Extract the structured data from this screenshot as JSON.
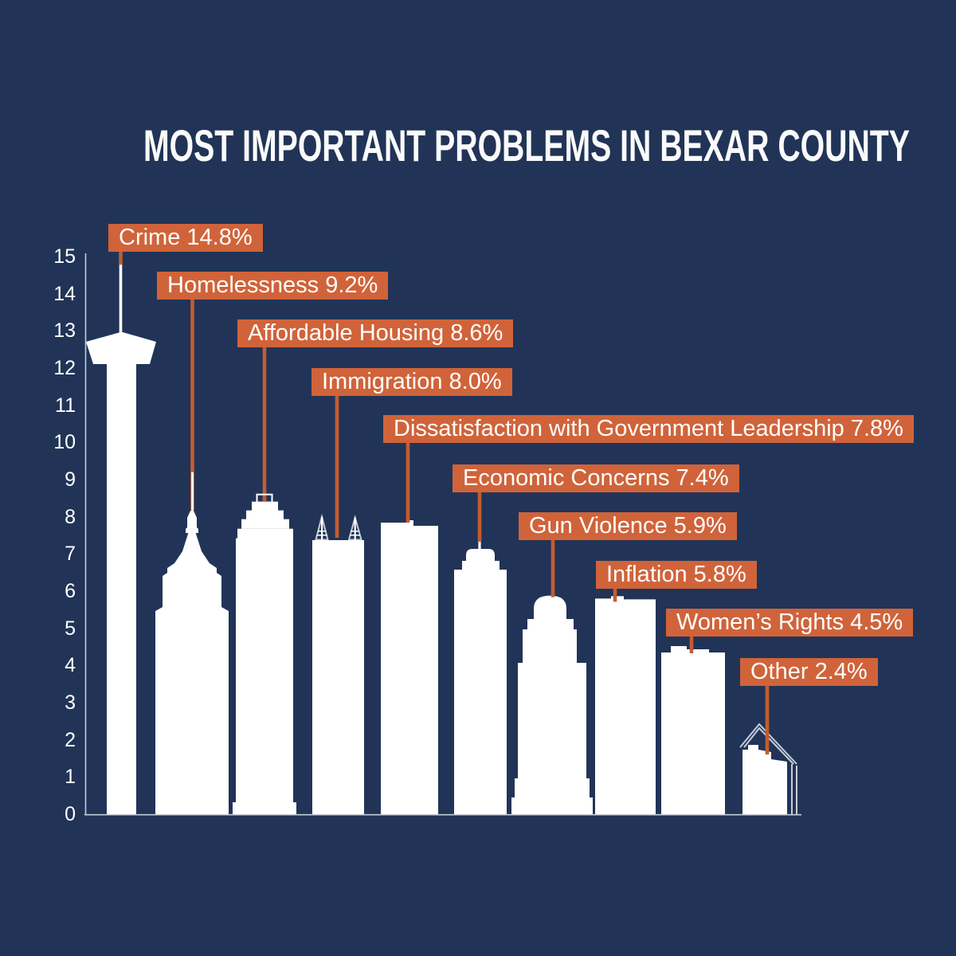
{
  "title": "MOST IMPORTANT PROBLEMS IN BEXAR COUNTY",
  "colors": {
    "background": "#213457",
    "label_box": "#D0633A",
    "callout_line": "#C45C30",
    "bar_fill": "#FFFFFF",
    "axis_line": "#C7CDD7",
    "tick_text": "#FFFFFF",
    "title_text": "#FAFAFA",
    "label_text": "#FFFFFF"
  },
  "y_axis": {
    "min": 0,
    "max": 15,
    "step": 1,
    "ticks": [
      0,
      1,
      2,
      3,
      4,
      5,
      6,
      7,
      8,
      9,
      10,
      11,
      12,
      13,
      14,
      15
    ]
  },
  "chart_data": {
    "type": "bar",
    "title": "MOST IMPORTANT PROBLEMS IN BEXAR COUNTY",
    "xlabel": "",
    "ylabel": "",
    "ylim": [
      0,
      15
    ],
    "ytick_step": 1,
    "grid": false,
    "legend": false,
    "bar_shape": "san-antonio-building-silhouettes",
    "value_suffix": "%",
    "label_format": "{category} {value}%",
    "categories": [
      "Crime",
      "Homelessness",
      "Affordable Housing",
      "Immigration",
      "Dissatisfaction with Government Leadership",
      "Economic Concerns",
      "Gun Violence",
      "Inflation",
      "Women’s Rights",
      "Other"
    ],
    "values": [
      14.8,
      9.2,
      8.6,
      8.0,
      7.8,
      7.4,
      5.9,
      5.8,
      4.5,
      2.4
    ],
    "display_values": [
      "14.8",
      "9.2",
      "8.6",
      "8.0",
      "7.8",
      "7.4",
      "5.9",
      "5.8",
      "4.5",
      "2.4"
    ]
  }
}
